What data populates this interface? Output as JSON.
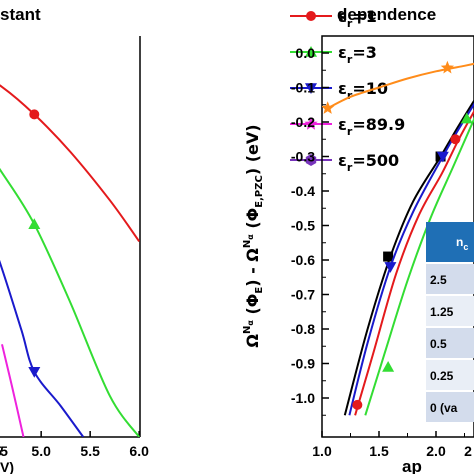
{
  "chart_data": [
    {
      "type": "line",
      "title": "stant",
      "xlabel": "V)",
      "xlim": [
        4.0,
        6.0
      ],
      "ylim": [
        -1.05,
        0.1
      ],
      "x_ticks": [
        "5",
        "4.5",
        "5.0",
        "5.5",
        "6.0"
      ],
      "series": [
        {
          "name": "εr=1",
          "legend_text": "=1",
          "color": "#e41a1c",
          "marker": "circle",
          "x": [
            4.0,
            4.3,
            4.6,
            4.93,
            5.3,
            5.7,
            6.0
          ],
          "y": [
            0.06,
            0.02,
            -0.03,
            -0.11,
            -0.22,
            -0.36,
            -0.48
          ],
          "marked_points": [
            [
              4.93,
              -0.11
            ]
          ]
        },
        {
          "name": "εr=3",
          "legend_text": "=3",
          "color": "#33dd33",
          "marker": "triangle",
          "x": [
            4.0,
            4.3,
            4.6,
            4.93,
            5.3,
            5.7,
            6.0
          ],
          "y": [
            -0.07,
            -0.16,
            -0.28,
            -0.43,
            -0.66,
            -0.93,
            -1.05
          ],
          "marked_points": [
            [
              4.93,
              -0.43
            ]
          ]
        },
        {
          "name": "εr=10",
          "legend_text": "=10",
          "color": "#1a1acc",
          "marker": "triangle-down",
          "x": [
            4.0,
            4.2,
            4.4,
            4.6,
            4.8,
            4.93,
            5.2,
            5.43
          ],
          "y": [
            -0.12,
            -0.25,
            -0.4,
            -0.56,
            -0.74,
            -0.86,
            -0.96,
            -1.05
          ],
          "marked_points": [
            [
              4.93,
              -0.86
            ]
          ]
        },
        {
          "name": "εr=89.9",
          "legend_text": "=89.9",
          "color": "#ee22dd",
          "marker": "star",
          "x": [
            4.6,
            4.7,
            4.82
          ],
          "y": [
            -0.78,
            -0.9,
            -1.05
          ],
          "marked_points": []
        },
        {
          "name": "εr=500",
          "legend_text": "=500",
          "color": "#7733bb",
          "marker": "hexagon",
          "x": [
            4.0,
            4.02
          ],
          "y": [
            -0.95,
            -1.05
          ],
          "marked_points": []
        }
      ]
    },
    {
      "type": "line",
      "title": "dependence",
      "xlabel": "ap",
      "ylabel_parts": {
        "omega": "Ω",
        "sup": "N",
        "subsup": "α",
        "left": " (Φ",
        "E": "E",
        "close": ")",
        "minus": " - ",
        "omega2": "Ω",
        "sup2": "N",
        "subsup2": "α",
        "left2": " (Φ",
        "E2": "E,PZC",
        "close2": ")",
        "unit": "  (eV)",
        "tilde": "~"
      },
      "xlim": [
        1.0,
        2.35
      ],
      "ylim": [
        -1.05,
        0.05
      ],
      "x_ticks": [
        "1.0",
        "1.5",
        "2.0",
        "2"
      ],
      "y_ticks": [
        "0.0",
        "-0.1",
        "-0.2",
        "-0.3",
        "-0.4",
        "-0.5",
        "-0.6",
        "-0.7",
        "-0.8",
        "-0.9",
        "-1.0"
      ],
      "series": [
        {
          "color": "#ff8c1a",
          "marker": "star",
          "x": [
            1.05,
            1.25,
            1.5,
            1.75,
            2.0,
            2.25,
            2.35
          ],
          "y": [
            -0.16,
            -0.127,
            -0.1,
            -0.074,
            -0.053,
            -0.037,
            -0.03
          ],
          "marked_points": [
            [
              1.05,
              -0.16
            ],
            [
              2.1,
              -0.043
            ]
          ]
        },
        {
          "color": "#000000",
          "marker": "square",
          "x": [
            1.2,
            1.4,
            1.6,
            1.8,
            2.04,
            2.2,
            2.35
          ],
          "y": [
            -1.05,
            -0.8,
            -0.59,
            -0.43,
            -0.3,
            -0.21,
            -0.13
          ],
          "marked_points": [
            [
              1.58,
              -0.59
            ],
            [
              2.04,
              -0.3
            ]
          ]
        },
        {
          "color": "#1a1acc",
          "marker": "triangle-down",
          "x": [
            1.24,
            1.4,
            1.6,
            1.8,
            2.06,
            2.2,
            2.35
          ],
          "y": [
            -1.05,
            -0.84,
            -0.62,
            -0.46,
            -0.3,
            -0.22,
            -0.14
          ],
          "marked_points": [
            [
              1.6,
              -0.62
            ],
            [
              2.06,
              -0.3
            ]
          ]
        },
        {
          "color": "#e41a1c",
          "marker": "circle",
          "x": [
            1.29,
            1.45,
            1.65,
            1.85,
            2.05,
            2.2,
            2.35
          ],
          "y": [
            -1.05,
            -0.87,
            -0.64,
            -0.47,
            -0.35,
            -0.25,
            -0.16
          ],
          "marked_points": [
            [
              1.31,
              -1.02
            ],
            [
              2.17,
              -0.25
            ]
          ]
        },
        {
          "color": "#33dd33",
          "marker": "triangle",
          "x": [
            1.38,
            1.55,
            1.75,
            1.95,
            2.15,
            2.35
          ],
          "y": [
            -1.05,
            -0.87,
            -0.66,
            -0.48,
            -0.33,
            -0.18
          ],
          "marked_points": [
            [
              1.58,
              -0.91
            ],
            [
              2.27,
              -0.19
            ]
          ]
        }
      ],
      "inset_table": {
        "header": "n",
        "header_sub": "c",
        "rows": [
          "2.5",
          "1.25",
          "0.5",
          "0.25",
          "0 (va"
        ]
      }
    }
  ]
}
